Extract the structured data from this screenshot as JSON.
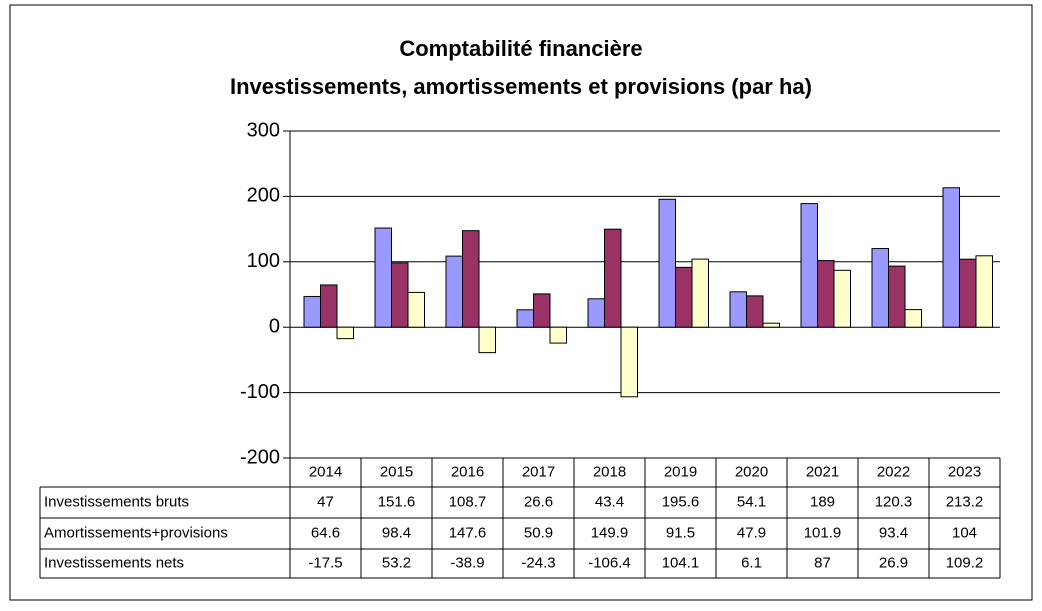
{
  "chart_data": {
    "type": "bar",
    "title": [
      "Comptabilité financière",
      "Investissements, amortissements et provisions (par ha)"
    ],
    "categories": [
      "2014",
      "2015",
      "2016",
      "2017",
      "2018",
      "2019",
      "2020",
      "2021",
      "2022",
      "2023"
    ],
    "series": [
      {
        "name": "Investissements bruts",
        "color": "#9999ff",
        "values": [
          47,
          151.6,
          108.7,
          26.6,
          43.4,
          195.6,
          54.1,
          189,
          120.3,
          213.2
        ]
      },
      {
        "name": "Amortissements+provisions",
        "color": "#993366",
        "values": [
          64.6,
          98.4,
          147.6,
          50.9,
          149.9,
          91.5,
          47.9,
          101.9,
          93.4,
          104
        ]
      },
      {
        "name": "Investissements nets",
        "color": "#ffffcc",
        "values": [
          -17.5,
          53.2,
          -38.9,
          -24.3,
          -106.4,
          104.1,
          6.1,
          87,
          26.9,
          109.2
        ]
      }
    ],
    "ylim": [
      -200,
      300
    ],
    "yticks": [
      -200,
      -100,
      0,
      100,
      200,
      300
    ],
    "grid": true
  }
}
